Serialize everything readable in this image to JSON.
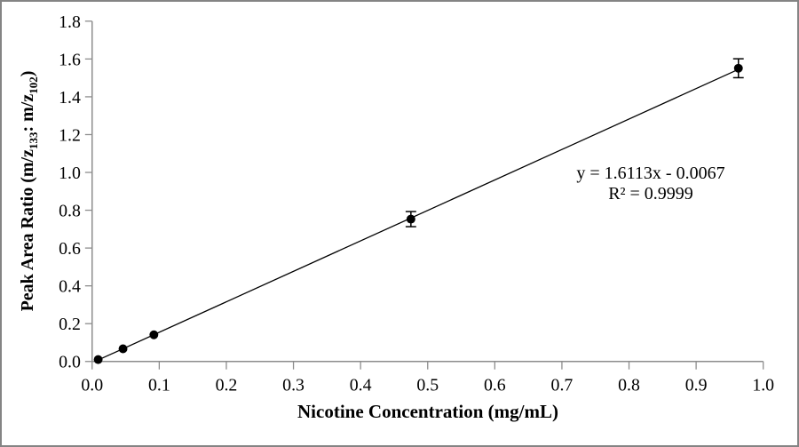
{
  "chart_data": {
    "type": "scatter",
    "title": "",
    "xlabel": "Nicotine Concentration (mg/mL)",
    "ylabel": "Peak Area Ratio (m/z133: m/z102)",
    "ylabel_parts": [
      "Peak Area Ratio (m/z",
      "133",
      ": m/z",
      "102",
      ")"
    ],
    "xlim": [
      0.0,
      1.0
    ],
    "ylim": [
      0.0,
      1.8
    ],
    "xtick_step": 0.1,
    "ytick_step": 0.2,
    "tick_decimals": 1,
    "grid": false,
    "legend": "none",
    "points": [
      {
        "x": 0.009,
        "y": 0.01,
        "yerr": 0
      },
      {
        "x": 0.046,
        "y": 0.067,
        "yerr": 0
      },
      {
        "x": 0.092,
        "y": 0.141,
        "yerr": 0
      },
      {
        "x": 0.475,
        "y": 0.753,
        "yerr": 0.04
      },
      {
        "x": 0.963,
        "y": 1.551,
        "yerr": 0.05
      }
    ],
    "trendline": {
      "slope": 1.6113,
      "intercept": -0.0067,
      "x_start": 0.009,
      "x_end": 0.963
    },
    "equation": "y = 1.6113x - 0.0067",
    "r_squared": "R² = 0.9999",
    "colors": {
      "marker": "#000000",
      "line": "#000000",
      "axis": "#8c8c8c",
      "text": "#000000",
      "frame": "#848484"
    }
  }
}
